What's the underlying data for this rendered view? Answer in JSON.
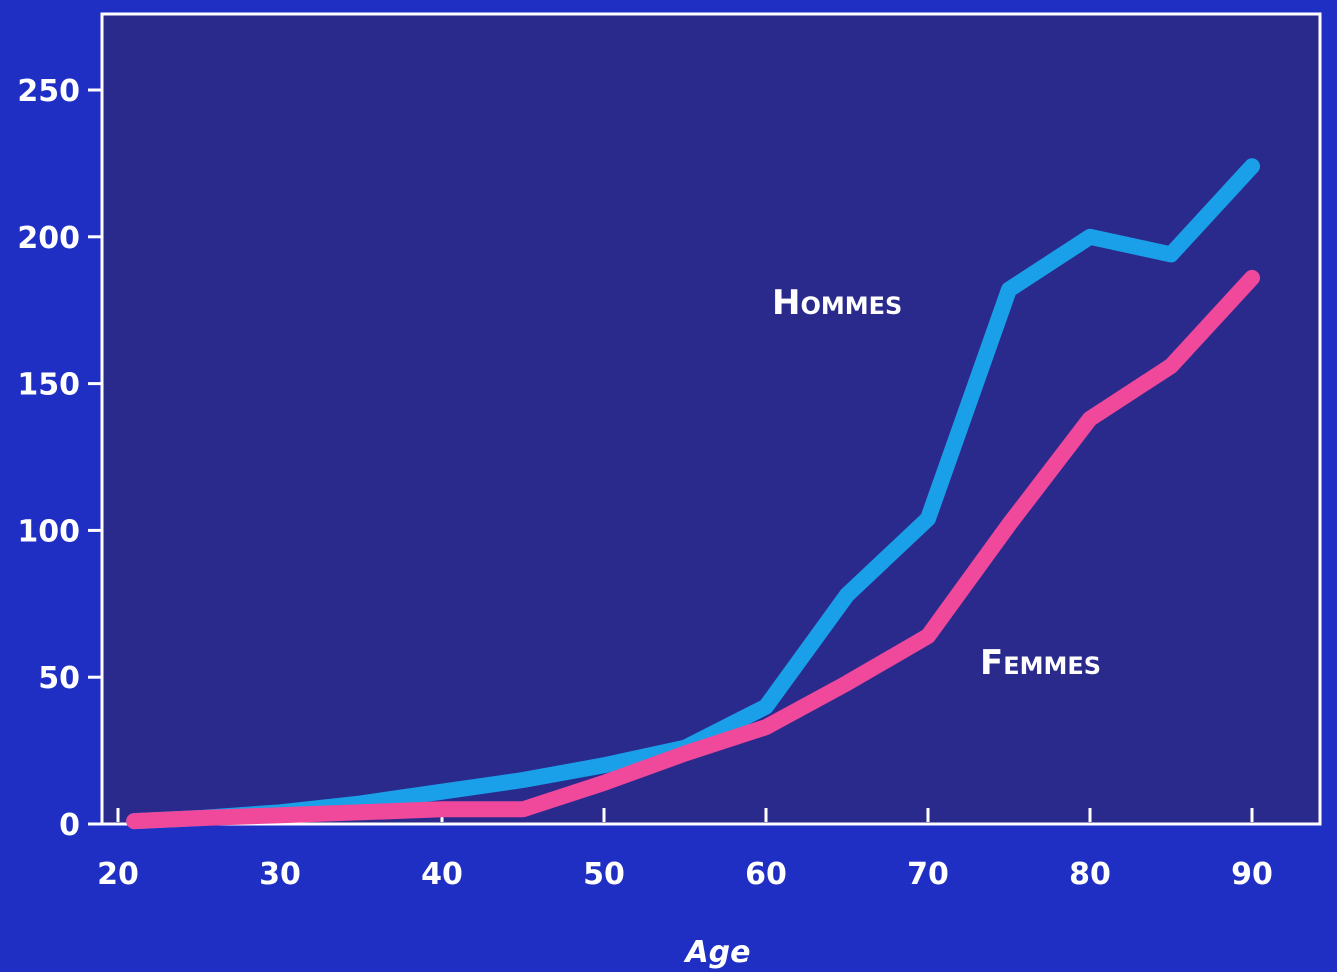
{
  "chart_data": {
    "type": "line",
    "title": "",
    "xlabel": "Age",
    "ylabel": "",
    "xlim": [
      20,
      95
    ],
    "ylim": [
      0,
      270
    ],
    "x_ticks": [
      "20",
      "30",
      "40",
      "50",
      "60",
      "70",
      "80",
      "90"
    ],
    "x_tick_values": [
      20,
      30,
      40,
      50,
      60,
      70,
      80,
      90
    ],
    "y_ticks": [
      "0",
      "50",
      "100",
      "150",
      "200",
      "250"
    ],
    "y_tick_values": [
      0,
      50,
      100,
      150,
      200,
      250
    ],
    "grid": false,
    "series": [
      {
        "name": "Hommes",
        "color": "#1aa0e8",
        "x": [
          21,
          25,
          30,
          35,
          40,
          45,
          50,
          55,
          60,
          65,
          70,
          75,
          80,
          85,
          90
        ],
        "y": [
          1,
          2,
          4,
          7,
          11,
          15,
          20,
          26,
          40,
          78,
          104,
          182,
          200,
          194,
          224
        ]
      },
      {
        "name": "Femmes",
        "color": "#f0489a",
        "x": [
          21,
          25,
          30,
          35,
          40,
          45,
          50,
          55,
          60,
          65,
          70,
          75,
          80,
          85,
          90
        ],
        "y": [
          1,
          2,
          3,
          4,
          5,
          5,
          14,
          24,
          33,
          48,
          64,
          102,
          138,
          156,
          186
        ]
      }
    ]
  },
  "colors": {
    "background": "#1f2fc4",
    "plot_area": "#2a2a8c",
    "axis": "#ffffff"
  }
}
